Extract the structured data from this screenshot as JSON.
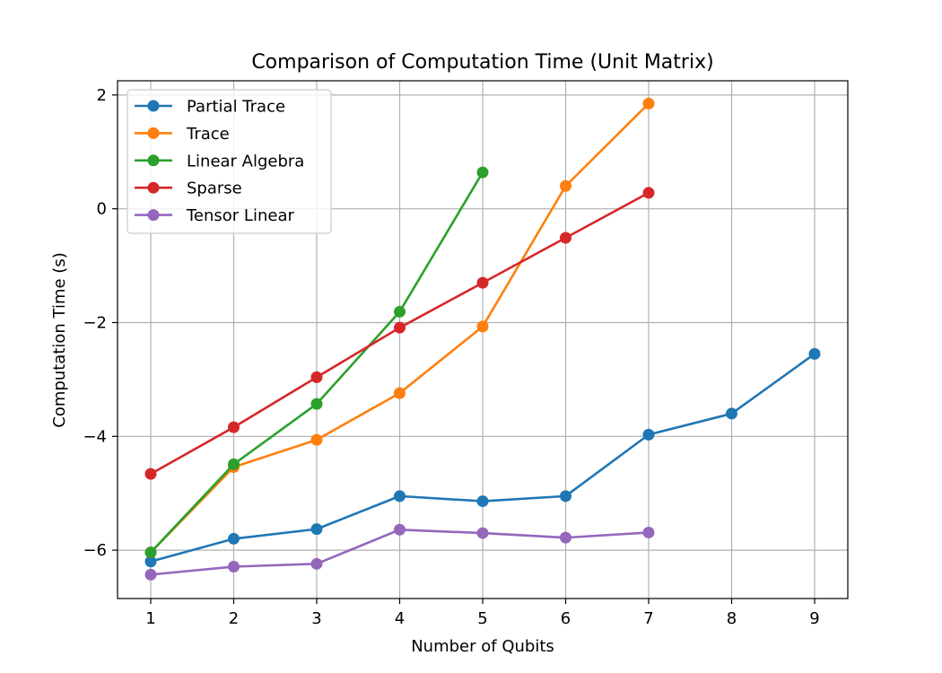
{
  "chart_data": {
    "type": "line",
    "title": "Comparison of Computation Time (Unit Matrix)",
    "xlabel": "Number of Qubits",
    "ylabel": "Computation Time (s)",
    "xlim": [
      0.6,
      9.4
    ],
    "ylim": [
      -6.85,
      2.25
    ],
    "xticks": [
      1,
      2,
      3,
      4,
      5,
      6,
      7,
      8,
      9
    ],
    "yticks": [
      -6,
      -4,
      -2,
      0,
      2
    ],
    "ytick_labels": [
      "−6",
      "−4",
      "−2",
      "0",
      "2"
    ],
    "grid": true,
    "legend_position": "top-left",
    "series": [
      {
        "name": "Partial Trace",
        "color": "#1f77b4",
        "x": [
          1,
          2,
          3,
          4,
          5,
          6,
          7,
          8,
          9
        ],
        "y": [
          -6.2,
          -5.8,
          -5.63,
          -5.05,
          -5.14,
          -5.05,
          -3.97,
          -3.6,
          -2.55
        ]
      },
      {
        "name": "Trace",
        "color": "#ff7f0e",
        "x": [
          1,
          2,
          3,
          4,
          5,
          6,
          7
        ],
        "y": [
          -6.04,
          -4.54,
          -4.06,
          -3.24,
          -2.07,
          0.4,
          1.85
        ]
      },
      {
        "name": "Linear Algebra",
        "color": "#2ca02c",
        "x": [
          1,
          2,
          3,
          4,
          5
        ],
        "y": [
          -6.04,
          -4.49,
          -3.43,
          -1.81,
          0.64
        ]
      },
      {
        "name": "Sparse",
        "color": "#d62728",
        "x": [
          1,
          2,
          3,
          4,
          5,
          6,
          7
        ],
        "y": [
          -4.66,
          -3.84,
          -2.96,
          -2.09,
          -1.3,
          -0.51,
          0.28
        ]
      },
      {
        "name": "Tensor Linear",
        "color": "#9467bd",
        "x": [
          1,
          2,
          3,
          4,
          5,
          6,
          7
        ],
        "y": [
          -6.43,
          -6.29,
          -6.24,
          -5.64,
          -5.7,
          -5.78,
          -5.69
        ]
      }
    ]
  }
}
